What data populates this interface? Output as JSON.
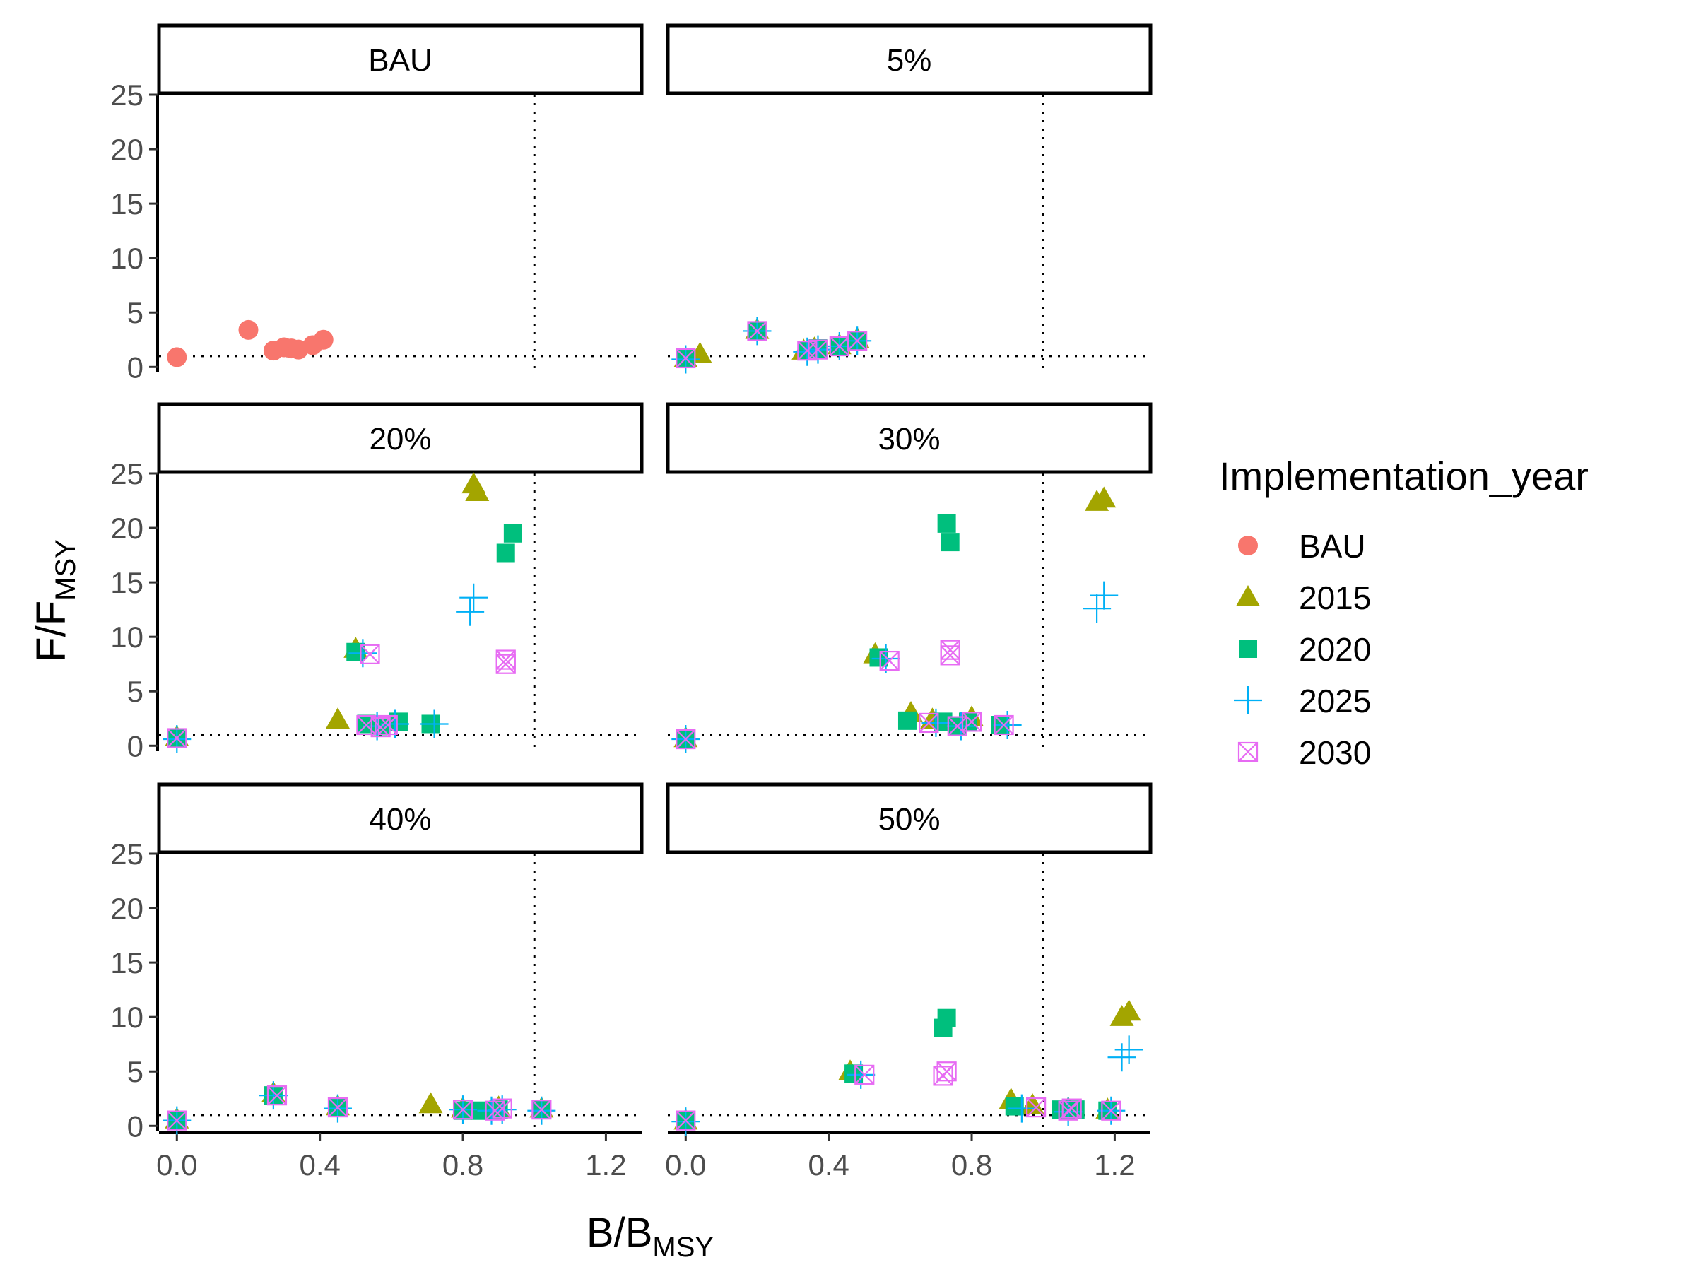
{
  "chart_data": {
    "type": "scatter",
    "facet_by": "scenario",
    "xlabel": "B/B",
    "xlabel_sub": "MSY",
    "ylabel": "F/F",
    "ylabel_sub": "MSY",
    "xlim": [
      -0.05,
      1.3
    ],
    "ylim": [
      -0.5,
      25
    ],
    "x_ticks": [
      0.0,
      0.4,
      0.8,
      1.2
    ],
    "x_tick_labels": [
      "0.0",
      "0.4",
      "0.8",
      "1.2"
    ],
    "y_ticks": [
      0,
      5,
      10,
      15,
      20,
      25
    ],
    "y_tick_labels": [
      "0",
      "5",
      "10",
      "15",
      "20",
      "25"
    ],
    "reference_lines": {
      "x": 1.0,
      "y": 1.0,
      "style": "dotted"
    },
    "grid": false,
    "legend": {
      "title": "Implementation_year",
      "placement": "right",
      "entries": [
        {
          "name": "BAU",
          "color": "#F8766D",
          "shape": "circle"
        },
        {
          "name": "2015",
          "color": "#A3A500",
          "shape": "triangle"
        },
        {
          "name": "2020",
          "color": "#00BF7D",
          "shape": "square"
        },
        {
          "name": "2025",
          "color": "#00B0F6",
          "shape": "plus"
        },
        {
          "name": "2030",
          "color": "#E76BF3",
          "shape": "boxx"
        }
      ]
    },
    "panels": [
      {
        "label": "BAU",
        "series": [
          {
            "name": "BAU",
            "points": [
              [
                0.0,
                0.9
              ],
              [
                0.2,
                3.4
              ],
              [
                0.27,
                1.5
              ],
              [
                0.3,
                1.8
              ],
              [
                0.32,
                1.7
              ],
              [
                0.34,
                1.6
              ],
              [
                0.38,
                2.0
              ],
              [
                0.41,
                2.5
              ]
            ]
          }
        ]
      },
      {
        "label": "5%",
        "series": [
          {
            "name": "2015",
            "points": [
              [
                0.0,
                0.8
              ],
              [
                0.04,
                1.2
              ],
              [
                0.2,
                3.4
              ],
              [
                0.33,
                1.5
              ],
              [
                0.36,
                1.7
              ],
              [
                0.43,
                2.0
              ],
              [
                0.48,
                2.6
              ]
            ]
          },
          {
            "name": "2020",
            "points": [
              [
                0.0,
                0.8
              ],
              [
                0.2,
                3.3
              ],
              [
                0.34,
                1.5
              ],
              [
                0.37,
                1.7
              ],
              [
                0.43,
                1.9
              ],
              [
                0.48,
                2.4
              ]
            ]
          },
          {
            "name": "2025",
            "points": [
              [
                0.0,
                0.7
              ],
              [
                0.2,
                3.3
              ],
              [
                0.34,
                1.4
              ],
              [
                0.37,
                1.6
              ],
              [
                0.43,
                1.9
              ],
              [
                0.48,
                2.4
              ]
            ]
          },
          {
            "name": "2030",
            "points": [
              [
                0.0,
                0.8
              ],
              [
                0.2,
                3.3
              ],
              [
                0.34,
                1.5
              ],
              [
                0.37,
                1.6
              ],
              [
                0.43,
                1.9
              ],
              [
                0.48,
                2.4
              ]
            ]
          }
        ]
      },
      {
        "label": "20%",
        "series": [
          {
            "name": "2015",
            "points": [
              [
                0.0,
                0.8
              ],
              [
                0.45,
                2.4
              ],
              [
                0.5,
                8.9
              ],
              [
                0.83,
                24.0
              ],
              [
                0.84,
                23.3
              ]
            ]
          },
          {
            "name": "2020",
            "points": [
              [
                0.0,
                0.7
              ],
              [
                0.5,
                8.6
              ],
              [
                0.53,
                2.0
              ],
              [
                0.57,
                1.8
              ],
              [
                0.62,
                2.2
              ],
              [
                0.71,
                2.0
              ],
              [
                0.92,
                17.7
              ],
              [
                0.94,
                19.5
              ]
            ]
          },
          {
            "name": "2025",
            "points": [
              [
                0.0,
                0.6
              ],
              [
                0.52,
                8.5
              ],
              [
                0.56,
                1.8
              ],
              [
                0.61,
                2.0
              ],
              [
                0.72,
                2.0
              ],
              [
                0.82,
                12.3
              ],
              [
                0.83,
                13.6
              ]
            ]
          },
          {
            "name": "2030",
            "points": [
              [
                0.0,
                0.7
              ],
              [
                0.53,
                1.9
              ],
              [
                0.54,
                8.4
              ],
              [
                0.57,
                1.7
              ],
              [
                0.59,
                1.9
              ],
              [
                0.92,
                7.5
              ],
              [
                0.92,
                7.9
              ]
            ]
          }
        ]
      },
      {
        "label": "30%",
        "series": [
          {
            "name": "2015",
            "points": [
              [
                0.0,
                0.7
              ],
              [
                0.53,
                8.4
              ],
              [
                0.63,
                3.0
              ],
              [
                0.69,
                2.4
              ],
              [
                0.8,
                2.6
              ],
              [
                1.15,
                22.4
              ],
              [
                1.17,
                22.7
              ]
            ]
          },
          {
            "name": "2020",
            "points": [
              [
                0.0,
                0.6
              ],
              [
                0.54,
                8.1
              ],
              [
                0.62,
                2.3
              ],
              [
                0.72,
                2.2
              ],
              [
                0.73,
                20.4
              ],
              [
                0.74,
                18.7
              ],
              [
                0.76,
                1.8
              ],
              [
                0.79,
                2.2
              ],
              [
                0.88,
                1.9
              ]
            ]
          },
          {
            "name": "2025",
            "points": [
              [
                0.0,
                0.6
              ],
              [
                0.56,
                8.0
              ],
              [
                0.7,
                2.1
              ],
              [
                0.77,
                1.8
              ],
              [
                0.9,
                1.9
              ],
              [
                1.15,
                12.6
              ],
              [
                1.17,
                13.8
              ]
            ]
          },
          {
            "name": "2030",
            "points": [
              [
                0.0,
                0.6
              ],
              [
                0.57,
                7.8
              ],
              [
                0.68,
                2.1
              ],
              [
                0.74,
                8.3
              ],
              [
                0.74,
                8.8
              ],
              [
                0.76,
                1.8
              ],
              [
                0.8,
                2.2
              ],
              [
                0.89,
                1.9
              ]
            ]
          }
        ]
      },
      {
        "label": "40%",
        "series": [
          {
            "name": "2015",
            "points": [
              [
                0.0,
                0.6
              ],
              [
                0.27,
                3.0
              ],
              [
                0.45,
                1.8
              ],
              [
                0.71,
                2.0
              ],
              [
                0.8,
                1.6
              ],
              [
                0.9,
                1.7
              ],
              [
                1.02,
                1.6
              ]
            ]
          },
          {
            "name": "2020",
            "points": [
              [
                0.0,
                0.5
              ],
              [
                0.27,
                2.8
              ],
              [
                0.45,
                1.7
              ],
              [
                0.8,
                1.4
              ],
              [
                0.85,
                1.4
              ],
              [
                0.9,
                1.5
              ],
              [
                1.02,
                1.5
              ]
            ]
          },
          {
            "name": "2025",
            "points": [
              [
                0.0,
                0.5
              ],
              [
                0.27,
                2.8
              ],
              [
                0.45,
                1.6
              ],
              [
                0.8,
                1.5
              ],
              [
                0.88,
                1.4
              ],
              [
                0.91,
                1.5
              ],
              [
                1.02,
                1.4
              ]
            ]
          },
          {
            "name": "2030",
            "points": [
              [
                0.0,
                0.5
              ],
              [
                0.28,
                2.8
              ],
              [
                0.45,
                1.7
              ],
              [
                0.8,
                1.5
              ],
              [
                0.89,
                1.4
              ],
              [
                0.91,
                1.6
              ],
              [
                1.02,
                1.5
              ]
            ]
          }
        ]
      },
      {
        "label": "50%",
        "series": [
          {
            "name": "2015",
            "points": [
              [
                0.0,
                0.5
              ],
              [
                0.46,
                5.0
              ],
              [
                0.91,
                2.4
              ],
              [
                0.97,
                1.9
              ],
              [
                1.07,
                1.6
              ],
              [
                1.18,
                1.5
              ],
              [
                1.22,
                10.0
              ],
              [
                1.24,
                10.5
              ]
            ]
          },
          {
            "name": "2020",
            "points": [
              [
                0.0,
                0.5
              ],
              [
                0.47,
                4.8
              ],
              [
                0.72,
                9.0
              ],
              [
                0.73,
                9.9
              ],
              [
                0.92,
                1.8
              ],
              [
                1.05,
                1.5
              ],
              [
                1.09,
                1.5
              ],
              [
                1.18,
                1.4
              ]
            ]
          },
          {
            "name": "2025",
            "points": [
              [
                0.0,
                0.4
              ],
              [
                0.49,
                4.7
              ],
              [
                0.94,
                1.6
              ],
              [
                1.07,
                1.3
              ],
              [
                1.19,
                1.4
              ],
              [
                1.22,
                6.3
              ],
              [
                1.24,
                7.0
              ]
            ]
          },
          {
            "name": "2030",
            "points": [
              [
                0.0,
                0.5
              ],
              [
                0.5,
                4.7
              ],
              [
                0.72,
                4.6
              ],
              [
                0.73,
                5.0
              ],
              [
                0.98,
                1.7
              ],
              [
                1.07,
                1.4
              ],
              [
                1.08,
                1.6
              ],
              [
                1.19,
                1.4
              ]
            ]
          }
        ]
      }
    ]
  }
}
